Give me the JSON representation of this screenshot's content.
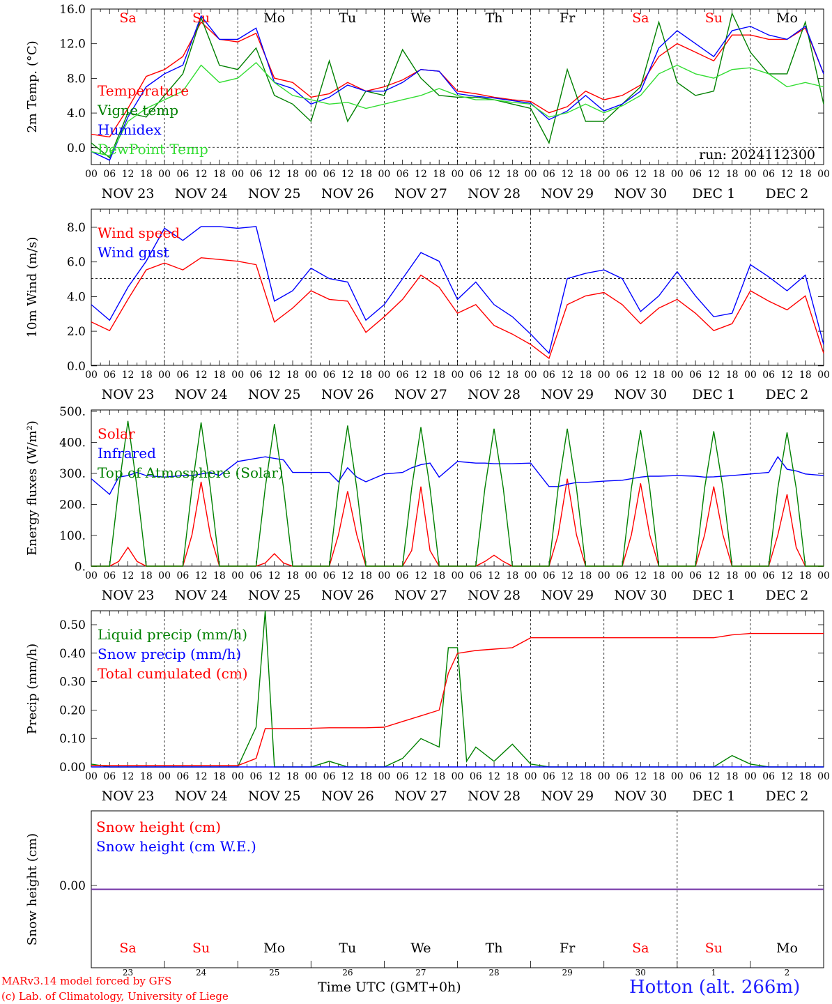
{
  "footer": {
    "model_line": "MARv3.14 model forced by GFS",
    "credit_line": "(c) Lab. of Climatology, University of Liege",
    "station": "Hotton (alt. 266m)",
    "x_title": "Time UTC (GMT+0h)"
  },
  "colors": {
    "red": "#ff0000",
    "green": "#008000",
    "blue": "#0000ff",
    "lightgreen": "#33dd33",
    "purple": "#7030a0"
  },
  "chart_data": [
    {
      "type": "line",
      "ylabel": "2m Temp. (°C)",
      "yticks": [
        "16.0",
        "12.0",
        "8.0",
        "4.0",
        "0.0"
      ],
      "ylim": [
        -2,
        16
      ],
      "run_label": "run: 2024112300",
      "day_names": [
        "Sa",
        "Su",
        "Mo",
        "Tu",
        "We",
        "Th",
        "Fr",
        "Sa",
        "Su",
        "Mo"
      ],
      "date_labels": [
        "NOV 23",
        "NOV 24",
        "NOV 25",
        "NOV 26",
        "NOV 27",
        "NOV 28",
        "NOV 29",
        "NOV 30",
        "DEC  1",
        "DEC  2"
      ],
      "hour_labels": [
        "00",
        "06",
        "12",
        "18"
      ],
      "x": [
        0,
        6,
        12,
        18,
        24,
        30,
        36,
        42,
        48,
        54,
        60,
        66,
        72,
        78,
        84,
        90,
        96,
        102,
        108,
        114,
        120,
        126,
        132,
        138,
        144,
        150,
        156,
        162,
        168,
        174,
        180,
        186,
        192,
        198,
        204,
        210,
        216,
        222,
        228,
        234,
        240
      ],
      "series": [
        {
          "name": "Temperature",
          "color": "#ff0000",
          "values": [
            1.5,
            1.2,
            4.5,
            8.2,
            9.0,
            10.5,
            14.5,
            12.5,
            12.2,
            13.2,
            8.0,
            7.5,
            5.8,
            6.2,
            7.5,
            6.5,
            7.0,
            7.8,
            9.0,
            8.8,
            6.5,
            6.2,
            5.8,
            5.5,
            5.3,
            4.0,
            4.7,
            6.5,
            5.5,
            6.0,
            7.2,
            10.5,
            12.0,
            11.0,
            10.0,
            13.0,
            13.0,
            12.5,
            12.5,
            13.8,
            8.5
          ]
        },
        {
          "name": "Vigne temp",
          "color": "#008000",
          "values": [
            0.5,
            -1.2,
            4.0,
            3.5,
            6.0,
            8.5,
            15.0,
            9.5,
            9.0,
            11.5,
            6.0,
            5.0,
            3.0,
            10.0,
            3.0,
            6.5,
            6.0,
            11.3,
            8.0,
            6.0,
            5.8,
            5.8,
            5.5,
            5.0,
            4.5,
            0.5,
            9.0,
            3.0,
            3.0,
            5.0,
            7.0,
            14.5,
            7.5,
            6.0,
            6.5,
            15.5,
            11.0,
            8.5,
            8.5,
            14.5,
            5.0
          ]
        },
        {
          "name": "Humidex",
          "color": "#0000ff",
          "values": [
            -0.5,
            -1.5,
            3.5,
            7.0,
            8.5,
            9.5,
            15.2,
            12.5,
            12.5,
            13.8,
            7.5,
            6.8,
            5.0,
            5.8,
            7.2,
            6.5,
            6.5,
            7.5,
            9.0,
            8.8,
            6.2,
            5.9,
            5.7,
            5.4,
            5.1,
            3.2,
            4.2,
            6.0,
            4.2,
            5.0,
            6.5,
            11.5,
            13.5,
            12.0,
            10.5,
            13.5,
            14.0,
            13.0,
            12.5,
            14.0,
            8.5
          ]
        },
        {
          "name": "DewPoint Temp",
          "color": "#33dd33",
          "values": [
            -0.5,
            -1.0,
            3.0,
            4.5,
            5.5,
            6.5,
            9.5,
            7.5,
            8.0,
            9.8,
            7.5,
            6.0,
            5.5,
            5.0,
            5.2,
            4.5,
            5.0,
            5.5,
            6.0,
            6.8,
            6.0,
            5.5,
            5.5,
            5.2,
            5.0,
            3.5,
            4.0,
            5.0,
            4.0,
            4.8,
            6.0,
            8.5,
            9.5,
            8.5,
            8.0,
            9.0,
            9.2,
            8.5,
            7.0,
            7.5,
            7.0
          ]
        }
      ]
    },
    {
      "type": "line",
      "ylabel": "10m Wind (m/s)",
      "yticks": [
        "8.0",
        "6.0",
        "4.0",
        "2.0",
        "0.0"
      ],
      "ylim": [
        0,
        9
      ],
      "reference_line": 5,
      "date_labels": [
        "NOV 23",
        "NOV 24",
        "NOV 25",
        "NOV 26",
        "NOV 27",
        "NOV 28",
        "NOV 29",
        "NOV 30",
        "DEC  1",
        "DEC  2"
      ],
      "hour_labels": [
        "00",
        "06",
        "12",
        "18"
      ],
      "x": [
        0,
        6,
        12,
        18,
        24,
        30,
        36,
        42,
        48,
        54,
        60,
        66,
        72,
        78,
        84,
        90,
        96,
        102,
        108,
        114,
        120,
        126,
        132,
        138,
        144,
        150,
        156,
        162,
        168,
        174,
        180,
        186,
        192,
        198,
        204,
        210,
        216,
        222,
        228,
        234,
        240
      ],
      "series": [
        {
          "name": "Wind speed",
          "color": "#ff0000",
          "values": [
            2.5,
            2.0,
            3.8,
            5.5,
            5.9,
            5.5,
            6.2,
            6.1,
            6.0,
            5.8,
            2.5,
            3.3,
            4.3,
            3.8,
            3.7,
            1.9,
            2.8,
            3.8,
            5.2,
            4.5,
            3.0,
            3.5,
            2.3,
            1.8,
            1.2,
            0.4,
            3.5,
            4.0,
            4.2,
            3.5,
            2.4,
            3.3,
            3.8,
            3.0,
            2.0,
            2.4,
            4.3,
            3.7,
            3.2,
            4.0,
            0.7
          ]
        },
        {
          "name": "Wind gust",
          "color": "#0000ff",
          "values": [
            3.5,
            2.6,
            4.5,
            6.0,
            7.9,
            7.2,
            8.0,
            8.0,
            7.9,
            8.0,
            3.7,
            4.3,
            5.6,
            5.0,
            4.8,
            2.6,
            3.5,
            5.0,
            6.5,
            6.0,
            3.8,
            4.8,
            3.5,
            2.8,
            1.8,
            0.7,
            5.0,
            5.3,
            5.5,
            5.0,
            3.1,
            4.0,
            5.4,
            4.0,
            2.8,
            3.0,
            5.8,
            5.1,
            4.3,
            5.2,
            1.2
          ]
        }
      ]
    },
    {
      "type": "line",
      "ylabel": "Energy fluxes (W/m²)",
      "yticks": [
        "500.",
        "400.",
        "300.",
        "200.",
        "100.",
        "0."
      ],
      "ylim": [
        0,
        500
      ],
      "date_labels": [
        "NOV 23",
        "NOV 24",
        "NOV 25",
        "NOV 26",
        "NOV 27",
        "NOV 28",
        "NOV 29",
        "NOV 30",
        "DEC  1",
        "DEC  2"
      ],
      "hour_labels": [
        "00",
        "06",
        "12",
        "18"
      ],
      "x": [
        0,
        6,
        9,
        12,
        15,
        18,
        24,
        30,
        33,
        36,
        39,
        42,
        48,
        54,
        57,
        60,
        63,
        66,
        72,
        78,
        81,
        84,
        87,
        90,
        96,
        102,
        105,
        108,
        111,
        114,
        120,
        126,
        129,
        132,
        135,
        138,
        144,
        150,
        153,
        156,
        159,
        162,
        168,
        174,
        177,
        180,
        183,
        186,
        192,
        198,
        201,
        204,
        207,
        210,
        216,
        222,
        225,
        228,
        231,
        234,
        240
      ],
      "series": [
        {
          "name": "Solar",
          "color": "#ff0000",
          "values": [
            0,
            0,
            15,
            60,
            15,
            0,
            0,
            0,
            100,
            270,
            100,
            0,
            0,
            0,
            10,
            40,
            10,
            0,
            0,
            0,
            100,
            240,
            100,
            0,
            0,
            0,
            50,
            255,
            50,
            0,
            0,
            0,
            15,
            35,
            15,
            0,
            0,
            0,
            100,
            280,
            100,
            0,
            0,
            0,
            100,
            265,
            100,
            0,
            0,
            0,
            100,
            255,
            100,
            0,
            0,
            0,
            100,
            230,
            60,
            0,
            0
          ]
        },
        {
          "name": "Infrared",
          "color": "#0000ff",
          "values": [
            280,
            230,
            285,
            290,
            300,
            290,
            285,
            290,
            290,
            295,
            300,
            290,
            335,
            345,
            350,
            345,
            340,
            300,
            300,
            300,
            270,
            315,
            285,
            270,
            295,
            300,
            315,
            325,
            330,
            285,
            335,
            330,
            330,
            328,
            328,
            328,
            330,
            255,
            255,
            262,
            268,
            268,
            272,
            275,
            280,
            285,
            288,
            288,
            290,
            288,
            285,
            286,
            288,
            290,
            295,
            300,
            350,
            310,
            305,
            295,
            290
          ]
        },
        {
          "name": "Top of Atmosphere (Solar)",
          "color": "#008000",
          "values": [
            0,
            0,
            250,
            465,
            250,
            0,
            0,
            0,
            250,
            460,
            250,
            0,
            0,
            0,
            250,
            455,
            250,
            0,
            0,
            0,
            250,
            450,
            250,
            0,
            0,
            0,
            250,
            445,
            250,
            0,
            0,
            0,
            250,
            440,
            250,
            0,
            0,
            0,
            250,
            440,
            250,
            0,
            0,
            0,
            250,
            435,
            250,
            0,
            0,
            0,
            250,
            432,
            250,
            0,
            0,
            0,
            250,
            428,
            250,
            0,
            0
          ]
        }
      ]
    },
    {
      "type": "line",
      "ylabel": "Precip (mm/h)",
      "yticks": [
        "0.50",
        "0.40",
        "0.30",
        "0.20",
        "0.10",
        "0.00"
      ],
      "ylim": [
        0,
        0.55
      ],
      "date_labels": [
        "NOV 23",
        "NOV 24",
        "NOV 25",
        "NOV 26",
        "NOV 27",
        "NOV 28",
        "NOV 29",
        "NOV 30",
        "DEC  1",
        "DEC  2"
      ],
      "hour_labels": [
        "00",
        "06",
        "12",
        "18"
      ],
      "x": [
        0,
        6,
        12,
        18,
        24,
        30,
        36,
        42,
        48,
        54,
        57,
        60,
        63,
        66,
        72,
        78,
        84,
        90,
        96,
        102,
        108,
        114,
        117,
        120,
        123,
        126,
        132,
        138,
        144,
        150,
        156,
        162,
        168,
        174,
        180,
        186,
        192,
        198,
        204,
        210,
        216,
        222,
        228,
        234,
        240
      ],
      "series": [
        {
          "name": "Liquid precip (mm/h)",
          "color": "#008000",
          "values": [
            0.01,
            0,
            0,
            0,
            0,
            0,
            0,
            0,
            0,
            0.14,
            0.55,
            0,
            0,
            0,
            0,
            0.02,
            0,
            0,
            0,
            0.03,
            0.1,
            0.07,
            0.42,
            0.42,
            0.02,
            0.07,
            0.02,
            0.08,
            0.01,
            0,
            0,
            0,
            0,
            0,
            0,
            0,
            0,
            0,
            0,
            0.04,
            0.01,
            0,
            0,
            0,
            0
          ]
        },
        {
          "name": "Snow precip (mm/h)",
          "color": "#0000ff",
          "values": [
            0,
            0,
            0,
            0,
            0,
            0,
            0,
            0,
            0,
            0,
            0,
            0,
            0,
            0,
            0,
            0,
            0,
            0,
            0,
            0,
            0,
            0,
            0,
            0,
            0,
            0,
            0,
            0,
            0,
            0,
            0,
            0,
            0,
            0,
            0,
            0,
            0,
            0,
            0,
            0,
            0,
            0,
            0,
            0,
            0
          ]
        },
        {
          "name": "Total cumulated (cm)",
          "color": "#ff0000",
          "values": [
            0.005,
            0.005,
            0.005,
            0.005,
            0.005,
            0.005,
            0.005,
            0.005,
            0.005,
            0.03,
            0.135,
            0.135,
            0.135,
            0.135,
            0.136,
            0.138,
            0.138,
            0.138,
            0.14,
            0.16,
            0.18,
            0.2,
            0.33,
            0.4,
            0.405,
            0.41,
            0.415,
            0.42,
            0.455,
            0.455,
            0.455,
            0.455,
            0.455,
            0.455,
            0.455,
            0.455,
            0.455,
            0.455,
            0.455,
            0.465,
            0.47,
            0.47,
            0.47,
            0.47,
            0.47
          ]
        }
      ]
    },
    {
      "type": "line",
      "ylabel": "Snow height (cm)",
      "yticks": [
        "0.00"
      ],
      "ylim": [
        -1,
        1
      ],
      "day_names": [
        "Sa",
        "Su",
        "Mo",
        "Tu",
        "We",
        "Th",
        "Fr",
        "Sa",
        "Su",
        "Mo"
      ],
      "day_numbers": [
        "23",
        "24",
        "25",
        "26",
        "27",
        "28",
        "29",
        "30",
        "1",
        "2"
      ],
      "x": [
        0,
        240
      ],
      "series": [
        {
          "name": "Snow height (cm)",
          "color": "#ff0000",
          "values": [
            0,
            0
          ]
        },
        {
          "name": "Snow height (cm W.E.)",
          "color": "#0000ff",
          "values": [
            0,
            0
          ]
        }
      ]
    }
  ]
}
